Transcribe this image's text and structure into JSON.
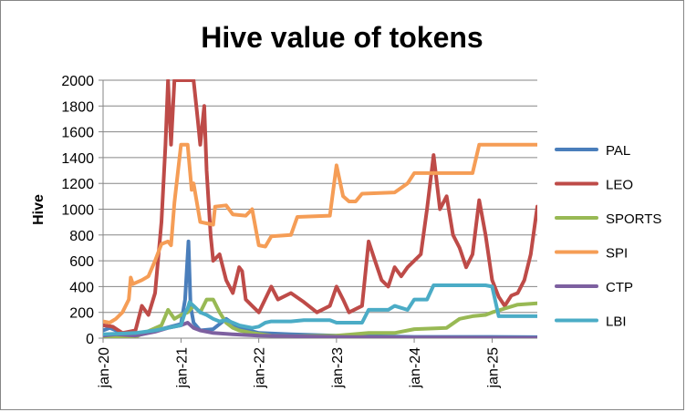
{
  "chart_data": {
    "type": "line",
    "title": "Hive value of tokens",
    "ylabel": "Hive",
    "xlabel": "",
    "ylim": [
      0,
      2000
    ],
    "y_ticks": [
      "0",
      "200",
      "400",
      "600",
      "800",
      "1000",
      "1200",
      "1400",
      "1600",
      "1800",
      "2000"
    ],
    "x_ticks": [
      "jan-20",
      "jan-21",
      "jan-22",
      "jan-23",
      "jan-24",
      "jan-25"
    ],
    "xlim": [
      "2020-01-01",
      "2025-08-01"
    ],
    "grid": "horizontal",
    "legend_position": "right",
    "series": [
      {
        "name": "PAL",
        "color": "#4a7ebb",
        "points": [
          [
            "2020-01-01",
            60
          ],
          [
            "2020-02-01",
            80
          ],
          [
            "2020-04-01",
            40
          ],
          [
            "2020-07-01",
            30
          ],
          [
            "2020-10-01",
            70
          ],
          [
            "2021-01-01",
            110
          ],
          [
            "2021-01-20",
            300
          ],
          [
            "2021-02-05",
            750
          ],
          [
            "2021-02-15",
            250
          ],
          [
            "2021-03-01",
            120
          ],
          [
            "2021-04-01",
            60
          ],
          [
            "2021-06-01",
            70
          ],
          [
            "2021-08-01",
            150
          ],
          [
            "2021-10-01",
            80
          ],
          [
            "2022-01-01",
            40
          ],
          [
            "2022-06-01",
            30
          ],
          [
            "2023-01-01",
            20
          ],
          [
            "2024-01-01",
            10
          ],
          [
            "2025-01-01",
            10
          ],
          [
            "2025-08-01",
            8
          ]
        ]
      },
      {
        "name": "LEO",
        "color": "#be4b48",
        "points": [
          [
            "2020-01-01",
            100
          ],
          [
            "2020-02-15",
            90
          ],
          [
            "2020-04-01",
            40
          ],
          [
            "2020-06-01",
            60
          ],
          [
            "2020-07-01",
            250
          ],
          [
            "2020-08-01",
            180
          ],
          [
            "2020-09-01",
            350
          ],
          [
            "2020-10-01",
            900
          ],
          [
            "2020-10-20",
            1500
          ],
          [
            "2020-11-01",
            2000
          ],
          [
            "2020-11-15",
            1500
          ],
          [
            "2020-12-01",
            2000
          ],
          [
            "2021-03-01",
            2000
          ],
          [
            "2021-03-20",
            1700
          ],
          [
            "2021-04-01",
            1500
          ],
          [
            "2021-04-20",
            1800
          ],
          [
            "2021-05-01",
            1300
          ],
          [
            "2021-05-20",
            800
          ],
          [
            "2021-06-01",
            600
          ],
          [
            "2021-07-01",
            650
          ],
          [
            "2021-08-01",
            450
          ],
          [
            "2021-09-01",
            350
          ],
          [
            "2021-10-01",
            550
          ],
          [
            "2021-10-15",
            520
          ],
          [
            "2021-11-01",
            300
          ],
          [
            "2021-12-01",
            250
          ],
          [
            "2022-01-01",
            200
          ],
          [
            "2022-03-01",
            400
          ],
          [
            "2022-04-01",
            300
          ],
          [
            "2022-06-01",
            350
          ],
          [
            "2022-08-01",
            280
          ],
          [
            "2022-10-01",
            200
          ],
          [
            "2022-12-01",
            250
          ],
          [
            "2023-01-01",
            400
          ],
          [
            "2023-02-01",
            300
          ],
          [
            "2023-03-01",
            200
          ],
          [
            "2023-05-01",
            250
          ],
          [
            "2023-06-01",
            750
          ],
          [
            "2023-07-01",
            600
          ],
          [
            "2023-08-01",
            450
          ],
          [
            "2023-09-01",
            400
          ],
          [
            "2023-10-01",
            550
          ],
          [
            "2023-11-01",
            480
          ],
          [
            "2023-12-01",
            550
          ],
          [
            "2024-01-01",
            600
          ],
          [
            "2024-02-01",
            650
          ],
          [
            "2024-03-01",
            1000
          ],
          [
            "2024-04-01",
            1420
          ],
          [
            "2024-05-01",
            1000
          ],
          [
            "2024-06-01",
            1100
          ],
          [
            "2024-07-01",
            800
          ],
          [
            "2024-08-01",
            700
          ],
          [
            "2024-09-01",
            550
          ],
          [
            "2024-10-01",
            650
          ],
          [
            "2024-11-01",
            1070
          ],
          [
            "2024-12-01",
            800
          ],
          [
            "2025-01-01",
            450
          ],
          [
            "2025-02-01",
            320
          ],
          [
            "2025-03-01",
            250
          ],
          [
            "2025-04-01",
            330
          ],
          [
            "2025-05-01",
            350
          ],
          [
            "2025-06-01",
            450
          ],
          [
            "2025-07-01",
            650
          ],
          [
            "2025-08-01",
            1020
          ]
        ]
      },
      {
        "name": "SPORTS",
        "color": "#98b954",
        "points": [
          [
            "2020-01-01",
            5
          ],
          [
            "2020-06-01",
            10
          ],
          [
            "2020-10-01",
            100
          ],
          [
            "2020-11-01",
            220
          ],
          [
            "2020-12-01",
            150
          ],
          [
            "2021-01-01",
            180
          ],
          [
            "2021-02-01",
            200
          ],
          [
            "2021-03-01",
            250
          ],
          [
            "2021-04-01",
            200
          ],
          [
            "2021-05-01",
            300
          ],
          [
            "2021-06-01",
            300
          ],
          [
            "2021-07-01",
            200
          ],
          [
            "2021-08-01",
            120
          ],
          [
            "2021-09-01",
            80
          ],
          [
            "2021-10-01",
            60
          ],
          [
            "2021-12-01",
            40
          ],
          [
            "2022-03-01",
            20
          ],
          [
            "2022-06-01",
            15
          ],
          [
            "2023-01-01",
            20
          ],
          [
            "2023-06-01",
            40
          ],
          [
            "2023-10-01",
            40
          ],
          [
            "2024-01-01",
            70
          ],
          [
            "2024-06-01",
            80
          ],
          [
            "2024-08-01",
            150
          ],
          [
            "2024-10-01",
            170
          ],
          [
            "2024-12-01",
            180
          ],
          [
            "2025-01-01",
            200
          ],
          [
            "2025-03-01",
            230
          ],
          [
            "2025-05-01",
            260
          ],
          [
            "2025-08-01",
            270
          ]
        ]
      },
      {
        "name": "SPI",
        "color": "#f59d56",
        "points": [
          [
            "2020-01-01",
            130
          ],
          [
            "2020-02-01",
            120
          ],
          [
            "2020-03-01",
            150
          ],
          [
            "2020-04-01",
            200
          ],
          [
            "2020-05-01",
            300
          ],
          [
            "2020-05-10",
            470
          ],
          [
            "2020-05-20",
            420
          ],
          [
            "2020-07-01",
            450
          ],
          [
            "2020-08-01",
            480
          ],
          [
            "2020-09-01",
            600
          ],
          [
            "2020-10-01",
            730
          ],
          [
            "2020-11-01",
            750
          ],
          [
            "2020-11-15",
            720
          ],
          [
            "2020-12-01",
            1050
          ],
          [
            "2021-01-01",
            1500
          ],
          [
            "2021-02-01",
            1500
          ],
          [
            "2021-02-20",
            1150
          ],
          [
            "2021-03-01",
            1200
          ],
          [
            "2021-04-01",
            900
          ],
          [
            "2021-06-01",
            880
          ],
          [
            "2021-06-10",
            1020
          ],
          [
            "2021-08-01",
            1030
          ],
          [
            "2021-09-01",
            960
          ],
          [
            "2021-11-01",
            950
          ],
          [
            "2021-12-01",
            1000
          ],
          [
            "2022-01-01",
            720
          ],
          [
            "2022-02-01",
            710
          ],
          [
            "2022-03-01",
            790
          ],
          [
            "2022-06-01",
            800
          ],
          [
            "2022-07-01",
            940
          ],
          [
            "2022-12-01",
            950
          ],
          [
            "2023-01-01",
            1340
          ],
          [
            "2023-02-01",
            1100
          ],
          [
            "2023-03-01",
            1060
          ],
          [
            "2023-04-01",
            1060
          ],
          [
            "2023-05-01",
            1120
          ],
          [
            "2023-10-01",
            1130
          ],
          [
            "2023-12-01",
            1200
          ],
          [
            "2024-01-01",
            1280
          ],
          [
            "2024-10-01",
            1280
          ],
          [
            "2024-11-01",
            1500
          ],
          [
            "2025-08-01",
            1500
          ]
        ]
      },
      {
        "name": "CTP",
        "color": "#7d60a0",
        "points": [
          [
            "2020-01-01",
            20
          ],
          [
            "2020-03-01",
            30
          ],
          [
            "2020-06-01",
            20
          ],
          [
            "2020-09-01",
            50
          ],
          [
            "2020-11-01",
            80
          ],
          [
            "2021-01-01",
            100
          ],
          [
            "2021-02-01",
            120
          ],
          [
            "2021-03-01",
            80
          ],
          [
            "2021-04-01",
            60
          ],
          [
            "2021-06-01",
            40
          ],
          [
            "2021-09-01",
            30
          ],
          [
            "2022-01-01",
            20
          ],
          [
            "2022-06-01",
            15
          ],
          [
            "2023-01-01",
            10
          ],
          [
            "2023-06-01",
            8
          ],
          [
            "2024-01-01",
            5
          ],
          [
            "2025-01-01",
            3
          ],
          [
            "2025-08-01",
            2
          ]
        ]
      },
      {
        "name": "LBI",
        "color": "#4bacc6",
        "points": [
          [
            "2020-01-01",
            30
          ],
          [
            "2020-06-01",
            40
          ],
          [
            "2020-09-01",
            60
          ],
          [
            "2020-11-01",
            80
          ],
          [
            "2020-12-01",
            90
          ],
          [
            "2021-01-01",
            100
          ],
          [
            "2021-01-20",
            200
          ],
          [
            "2021-02-01",
            230
          ],
          [
            "2021-02-10",
            280
          ],
          [
            "2021-03-01",
            250
          ],
          [
            "2021-04-01",
            200
          ],
          [
            "2021-05-01",
            180
          ],
          [
            "2021-06-01",
            150
          ],
          [
            "2021-07-01",
            130
          ],
          [
            "2021-08-01",
            140
          ],
          [
            "2021-09-01",
            120
          ],
          [
            "2021-10-01",
            100
          ],
          [
            "2021-12-01",
            80
          ],
          [
            "2022-01-01",
            90
          ],
          [
            "2022-02-01",
            120
          ],
          [
            "2022-03-01",
            130
          ],
          [
            "2022-05-01",
            130
          ],
          [
            "2022-06-01",
            130
          ],
          [
            "2022-08-01",
            140
          ],
          [
            "2022-12-01",
            140
          ],
          [
            "2023-01-01",
            120
          ],
          [
            "2023-05-01",
            120
          ],
          [
            "2023-06-01",
            220
          ],
          [
            "2023-09-01",
            220
          ],
          [
            "2023-10-01",
            250
          ],
          [
            "2023-12-01",
            220
          ],
          [
            "2024-01-01",
            300
          ],
          [
            "2024-02-01",
            300
          ],
          [
            "2024-03-01",
            300
          ],
          [
            "2024-04-01",
            410
          ],
          [
            "2024-12-01",
            410
          ],
          [
            "2025-01-01",
            400
          ],
          [
            "2025-02-01",
            170
          ],
          [
            "2025-08-01",
            170
          ]
        ]
      }
    ]
  }
}
